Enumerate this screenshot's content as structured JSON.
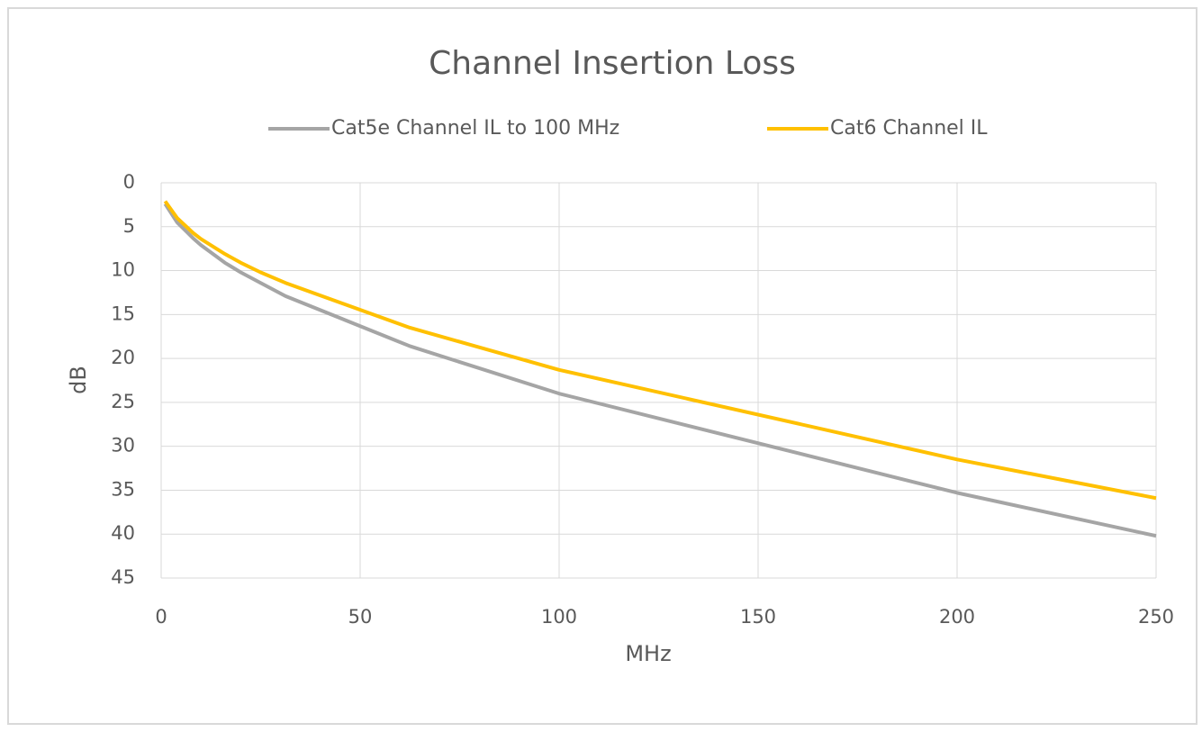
{
  "chart_data": {
    "type": "line",
    "title": "Channel Insertion Loss",
    "x_label": "MHz",
    "y_label": "dB",
    "xlim": [
      0,
      250
    ],
    "xticks": [
      0,
      50,
      100,
      150,
      200,
      250
    ],
    "ylim": [
      0,
      45
    ],
    "yticks": [
      0,
      5,
      10,
      15,
      20,
      25,
      30,
      35,
      40,
      45
    ],
    "y_reversed": true,
    "grid": true,
    "legend": "top",
    "series": [
      {
        "name": "Cat5e Channel IL to 100 MHz",
        "color": "#a5a5a5",
        "x": [
          1,
          4,
          8,
          10,
          16,
          20,
          25,
          31.25,
          62.5,
          100,
          200,
          250
        ],
        "values": [
          2.4,
          4.5,
          6.3,
          7.1,
          9.1,
          10.2,
          11.4,
          12.9,
          18.6,
          24.0,
          35.3,
          40.2
        ]
      },
      {
        "name": "Cat6 Channel IL",
        "color": "#ffc000",
        "x": [
          1,
          4,
          8,
          10,
          16,
          20,
          25,
          31.25,
          62.5,
          100,
          200,
          250
        ],
        "values": [
          2.1,
          4.0,
          5.7,
          6.4,
          8.1,
          9.1,
          10.2,
          11.4,
          16.5,
          21.3,
          31.5,
          35.9
        ]
      }
    ]
  }
}
